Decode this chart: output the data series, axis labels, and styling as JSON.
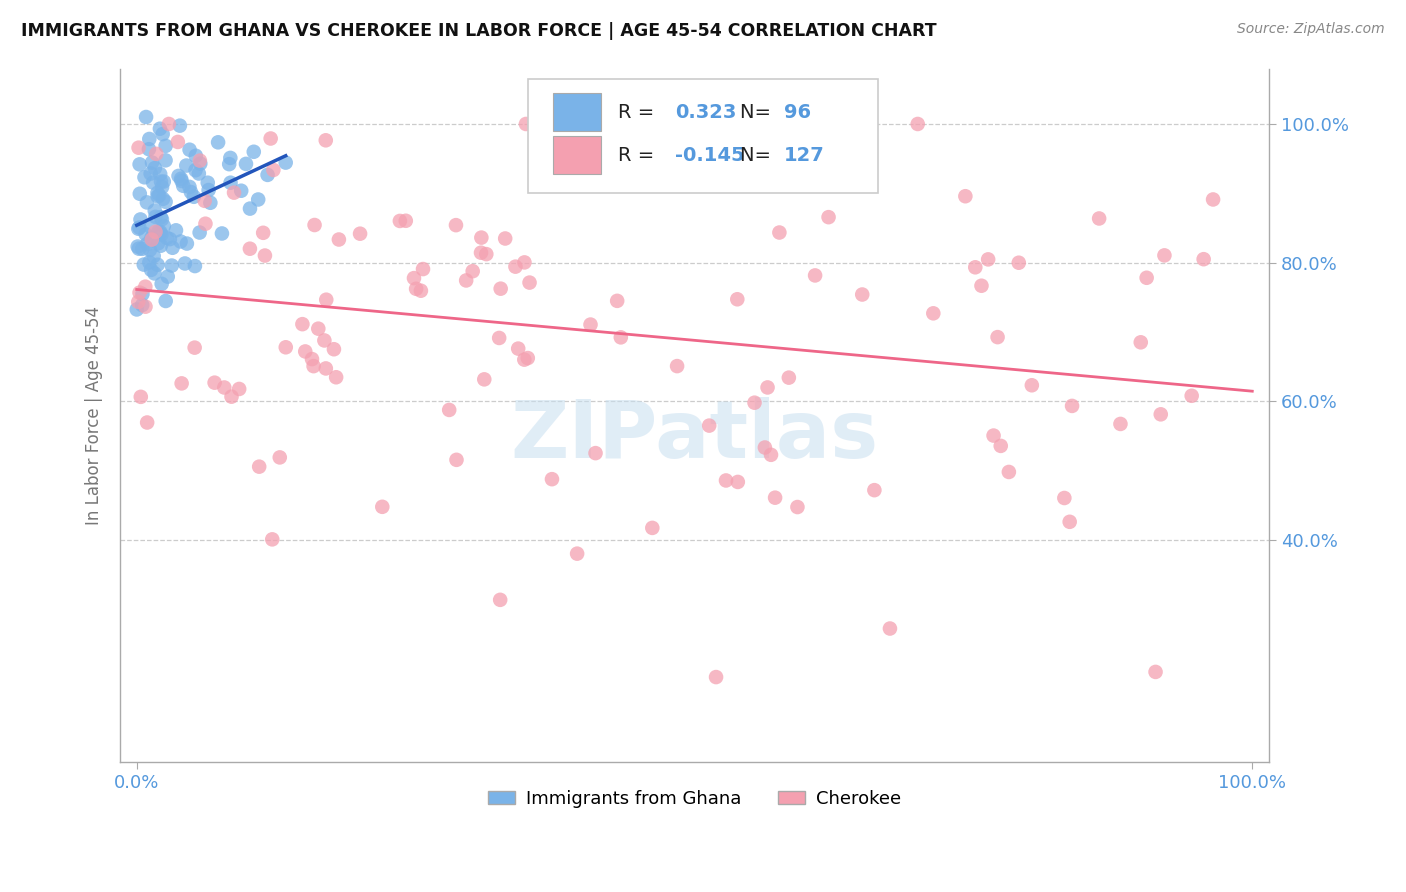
{
  "title": "IMMIGRANTS FROM GHANA VS CHEROKEE IN LABOR FORCE | AGE 45-54 CORRELATION CHART",
  "source": "Source: ZipAtlas.com",
  "ylabel": "In Labor Force | Age 45-54",
  "xmin": 0.0,
  "xmax": 1.0,
  "ymin": 0.08,
  "ymax": 1.08,
  "ghana_R": 0.323,
  "ghana_N": 96,
  "cherokee_R": -0.145,
  "cherokee_N": 127,
  "ghana_color": "#7ab3e8",
  "cherokee_color": "#f4a0b0",
  "ghana_line_color": "#2255bb",
  "cherokee_line_color": "#ee6688",
  "background_color": "#ffffff",
  "watermark_text": "ZIPatlas",
  "watermark_color": "#c8dff0",
  "legend_ghana": "Immigrants from Ghana",
  "legend_cherokee": "Cherokee",
  "right_yticks": [
    0.4,
    0.6,
    0.8,
    1.0
  ],
  "right_ytick_labels": [
    "40.0%",
    "60.0%",
    "80.0%",
    "100.0%"
  ],
  "xtick_labels": [
    "0.0%",
    "100.0%"
  ],
  "xtick_positions": [
    0.0,
    1.0
  ],
  "hgrid_vals": [
    0.4,
    0.6,
    0.8,
    1.0
  ],
  "tick_color": "#5599dd",
  "axis_label_color": "#777777"
}
